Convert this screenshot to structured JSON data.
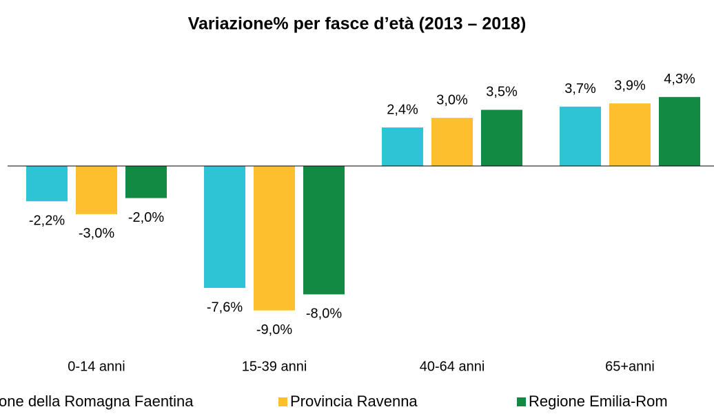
{
  "chart_data": {
    "type": "bar",
    "title": "Variazione% per fasce d’età  (2013 – 2018)",
    "categories": [
      "0-14 anni",
      "15-39 anni",
      "40-64 anni",
      "65+anni"
    ],
    "series": [
      {
        "name": "one della Romagna Faentina",
        "color": "#2ec4d6",
        "values": [
          -2.2,
          -7.6,
          2.4,
          3.7
        ],
        "value_labels": [
          "-2,2%",
          "-7,6%",
          "2,4%",
          "3,7%"
        ]
      },
      {
        "name": "Provincia Ravenna",
        "color": "#fdbf2d",
        "values": [
          -3.0,
          -9.0,
          3.0,
          3.9
        ],
        "value_labels": [
          "-3,0%",
          "-9,0%",
          "3,0%",
          "3,9%"
        ]
      },
      {
        "name": "Regione Emilia-Rom",
        "color": "#138a43",
        "values": [
          -2.0,
          -8.0,
          3.5,
          4.3
        ],
        "value_labels": [
          "-2,0%",
          "-8,0%",
          "3,5%",
          "4,3%"
        ]
      }
    ]
  }
}
